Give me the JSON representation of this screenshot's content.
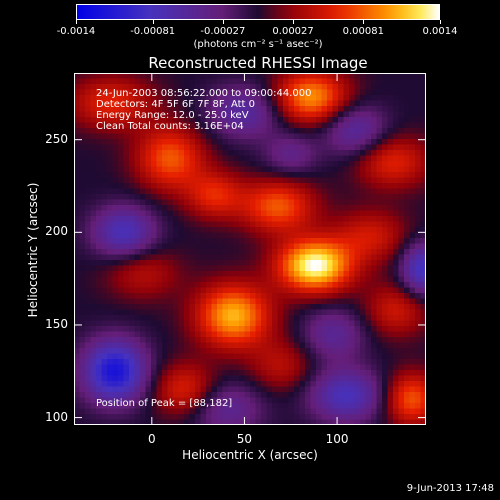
{
  "colorbar": {
    "ticks": [
      "-0.0014",
      "-0.00081",
      "-0.00027",
      "0.00027",
      "0.00081",
      "0.0014"
    ],
    "unit": "(photons cm⁻² s⁻¹ asec⁻²)"
  },
  "chart_data": {
    "type": "heatmap",
    "title": "Reconstructed RHESSI Image",
    "xlabel": "Heliocentric X (arcsec)",
    "ylabel": "Heliocentric Y (arcsec)",
    "xlim": [
      -42,
      148
    ],
    "ylim": [
      96,
      286
    ],
    "x_ticks": [
      0,
      50,
      100
    ],
    "y_ticks": [
      100,
      150,
      200,
      250
    ],
    "zlim": [
      -0.0014,
      0.0014
    ],
    "colormap": "blue-purple-red-yellow-white",
    "annotations": [
      "24-Jun-2003 08:56:22.000 to 09:00:44.000",
      "Detectors: 4F 5F 6F 7F 8F, Att 0",
      "Energy Range: 12.0 - 25.0 keV",
      "Clean    Total counts: 3.16E+04"
    ],
    "peak_label": "Position of Peak = [88,182]",
    "peak": [
      88,
      182
    ],
    "blobs": [
      {
        "x": 88,
        "y": 182,
        "v": 0.0014,
        "sx": 14,
        "sy": 10
      },
      {
        "x": 44,
        "y": 155,
        "v": 0.0011,
        "sx": 14,
        "sy": 12
      },
      {
        "x": 10,
        "y": 240,
        "v": 0.0008,
        "sx": 13,
        "sy": 12
      },
      {
        "x": 68,
        "y": 214,
        "v": 0.0008,
        "sx": 14,
        "sy": 10
      },
      {
        "x": 34,
        "y": 220,
        "v": 0.0006,
        "sx": 11,
        "sy": 9
      },
      {
        "x": 86,
        "y": 273,
        "v": 0.001,
        "sx": 14,
        "sy": 10
      },
      {
        "x": -22,
        "y": 270,
        "v": 0.0006,
        "sx": 16,
        "sy": 10
      },
      {
        "x": 130,
        "y": 238,
        "v": 0.0006,
        "sx": 14,
        "sy": 10
      },
      {
        "x": 118,
        "y": 198,
        "v": 0.0005,
        "sx": 14,
        "sy": 10
      },
      {
        "x": 132,
        "y": 158,
        "v": 0.0005,
        "sx": 12,
        "sy": 10
      },
      {
        "x": 140,
        "y": 110,
        "v": 0.0008,
        "sx": 10,
        "sy": 10
      },
      {
        "x": 18,
        "y": 115,
        "v": 0.0006,
        "sx": 12,
        "sy": 10
      },
      {
        "x": -5,
        "y": 178,
        "v": 0.0004,
        "sx": 14,
        "sy": 10
      },
      {
        "x": 70,
        "y": 128,
        "v": 0.0004,
        "sx": 12,
        "sy": 10
      },
      {
        "x": -20,
        "y": 125,
        "v": -0.0012,
        "sx": 12,
        "sy": 12
      },
      {
        "x": -15,
        "y": 200,
        "v": -0.0008,
        "sx": 12,
        "sy": 10
      },
      {
        "x": 105,
        "y": 112,
        "v": -0.0008,
        "sx": 14,
        "sy": 10
      },
      {
        "x": 146,
        "y": 180,
        "v": -0.0009,
        "sx": 8,
        "sy": 10
      },
      {
        "x": 50,
        "y": 265,
        "v": -0.0006,
        "sx": 14,
        "sy": 10
      },
      {
        "x": 110,
        "y": 255,
        "v": -0.0006,
        "sx": 12,
        "sy": 10
      },
      {
        "x": 40,
        "y": 105,
        "v": -0.0005,
        "sx": 14,
        "sy": 10
      },
      {
        "x": 98,
        "y": 145,
        "v": -0.0005,
        "sx": 12,
        "sy": 10
      },
      {
        "x": 75,
        "y": 242,
        "v": -0.0004,
        "sx": 10,
        "sy": 8
      }
    ]
  },
  "footer": "9-Jun-2013 17:48"
}
